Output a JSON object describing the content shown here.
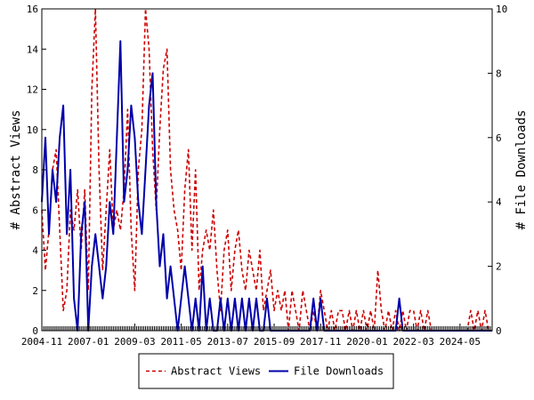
{
  "chart_data": {
    "type": "line",
    "title": "",
    "x_start": "2004-11",
    "x_end": "2025-11",
    "x_tick_labels": [
      "2004-11",
      "2007-01",
      "2009-03",
      "2011-05",
      "2013-07",
      "2015-09",
      "2017-11",
      "2020-01",
      "2022-03",
      "2024-05"
    ],
    "left_axis": {
      "label": "# Abstract Views",
      "min": 0,
      "max": 16,
      "ticks": [
        0,
        2,
        4,
        6,
        8,
        10,
        12,
        14,
        16
      ]
    },
    "right_axis": {
      "label": "# File Downloads",
      "min": 0,
      "max": 10,
      "ticks": [
        0,
        2,
        4,
        6,
        8,
        10
      ]
    },
    "grid": false,
    "legend": {
      "position": "bottom-center"
    },
    "series": [
      {
        "name": "Abstract Views",
        "axis": "left",
        "color": "#cc0000",
        "style": "dashed",
        "points": [
          [
            "2004-11",
            6
          ],
          [
            "2005-01",
            3
          ],
          [
            "2005-03",
            5
          ],
          [
            "2005-05",
            8
          ],
          [
            "2005-07",
            9
          ],
          [
            "2005-09",
            5
          ],
          [
            "2005-11",
            1
          ],
          [
            "2006-01",
            2
          ],
          [
            "2006-03",
            6
          ],
          [
            "2006-05",
            5
          ],
          [
            "2006-07",
            7
          ],
          [
            "2006-09",
            4
          ],
          [
            "2006-11",
            7
          ],
          [
            "2007-01",
            2
          ],
          [
            "2007-03",
            12
          ],
          [
            "2007-05",
            16
          ],
          [
            "2007-07",
            8
          ],
          [
            "2007-09",
            3
          ],
          [
            "2007-11",
            6
          ],
          [
            "2008-01",
            9
          ],
          [
            "2008-03",
            5
          ],
          [
            "2008-05",
            6
          ],
          [
            "2008-07",
            5
          ],
          [
            "2008-09",
            7
          ],
          [
            "2008-11",
            11
          ],
          [
            "2009-01",
            5
          ],
          [
            "2009-03",
            2
          ],
          [
            "2009-05",
            8
          ],
          [
            "2009-07",
            10
          ],
          [
            "2009-09",
            16
          ],
          [
            "2009-11",
            14
          ],
          [
            "2010-01",
            9
          ],
          [
            "2010-03",
            6
          ],
          [
            "2010-05",
            10
          ],
          [
            "2010-07",
            13
          ],
          [
            "2010-09",
            14
          ],
          [
            "2010-11",
            8
          ],
          [
            "2011-01",
            6
          ],
          [
            "2011-03",
            5
          ],
          [
            "2011-05",
            3
          ],
          [
            "2011-07",
            7
          ],
          [
            "2011-09",
            9
          ],
          [
            "2011-11",
            4
          ],
          [
            "2012-01",
            8
          ],
          [
            "2012-03",
            2
          ],
          [
            "2012-05",
            4
          ],
          [
            "2012-07",
            5
          ],
          [
            "2012-09",
            4
          ],
          [
            "2012-11",
            6
          ],
          [
            "2013-01",
            3
          ],
          [
            "2013-03",
            1
          ],
          [
            "2013-05",
            4
          ],
          [
            "2013-07",
            5
          ],
          [
            "2013-09",
            2
          ],
          [
            "2013-11",
            4
          ],
          [
            "2014-01",
            5
          ],
          [
            "2014-03",
            3
          ],
          [
            "2014-05",
            2
          ],
          [
            "2014-07",
            4
          ],
          [
            "2014-09",
            3
          ],
          [
            "2014-11",
            2
          ],
          [
            "2015-01",
            4
          ],
          [
            "2015-03",
            1
          ],
          [
            "2015-05",
            2
          ],
          [
            "2015-07",
            3
          ],
          [
            "2015-09",
            1
          ],
          [
            "2015-11",
            2
          ],
          [
            "2016-01",
            1
          ],
          [
            "2016-03",
            2
          ],
          [
            "2016-05",
            0
          ],
          [
            "2016-07",
            2
          ],
          [
            "2016-09",
            1
          ],
          [
            "2016-11",
            0
          ],
          [
            "2017-01",
            2
          ],
          [
            "2017-03",
            1
          ],
          [
            "2017-05",
            0
          ],
          [
            "2017-07",
            1
          ],
          [
            "2017-09",
            0
          ],
          [
            "2017-11",
            2
          ],
          [
            "2018-01",
            1
          ],
          [
            "2018-03",
            0
          ],
          [
            "2018-05",
            1
          ],
          [
            "2018-07",
            0
          ],
          [
            "2018-09",
            1
          ],
          [
            "2018-11",
            1
          ],
          [
            "2019-01",
            0
          ],
          [
            "2019-03",
            1
          ],
          [
            "2019-05",
            0
          ],
          [
            "2019-07",
            1
          ],
          [
            "2019-09",
            0
          ],
          [
            "2019-11",
            1
          ],
          [
            "2020-01",
            0
          ],
          [
            "2020-03",
            1
          ],
          [
            "2020-05",
            0
          ],
          [
            "2020-07",
            3
          ],
          [
            "2020-09",
            1
          ],
          [
            "2020-11",
            0
          ],
          [
            "2021-01",
            1
          ],
          [
            "2021-03",
            0
          ],
          [
            "2021-05",
            1
          ],
          [
            "2021-07",
            0
          ],
          [
            "2021-09",
            1
          ],
          [
            "2021-11",
            0
          ],
          [
            "2022-01",
            1
          ],
          [
            "2022-03",
            1
          ],
          [
            "2022-05",
            0
          ],
          [
            "2022-07",
            1
          ],
          [
            "2022-09",
            0
          ],
          [
            "2022-11",
            1
          ],
          [
            "2023-01",
            0
          ],
          [
            "2023-03",
            0
          ],
          [
            "2023-05",
            0
          ],
          [
            "2023-07",
            0
          ],
          [
            "2023-09",
            0
          ],
          [
            "2023-11",
            0
          ],
          [
            "2024-01",
            0
          ],
          [
            "2024-03",
            0
          ],
          [
            "2024-05",
            0
          ],
          [
            "2024-07",
            0
          ],
          [
            "2024-09",
            0
          ],
          [
            "2024-11",
            1
          ],
          [
            "2025-01",
            0
          ],
          [
            "2025-03",
            1
          ],
          [
            "2025-05",
            0
          ],
          [
            "2025-07",
            1
          ],
          [
            "2025-09",
            0
          ],
          [
            "2025-11",
            0
          ]
        ]
      },
      {
        "name": "File Downloads",
        "axis": "right",
        "color": "#0000aa",
        "style": "solid",
        "points": [
          [
            "2004-11",
            4
          ],
          [
            "2005-01",
            6
          ],
          [
            "2005-03",
            3
          ],
          [
            "2005-05",
            5
          ],
          [
            "2005-07",
            4
          ],
          [
            "2005-09",
            6
          ],
          [
            "2005-11",
            7
          ],
          [
            "2006-01",
            3
          ],
          [
            "2006-03",
            5
          ],
          [
            "2006-05",
            1
          ],
          [
            "2006-07",
            0
          ],
          [
            "2006-09",
            3
          ],
          [
            "2006-11",
            4
          ],
          [
            "2007-01",
            0
          ],
          [
            "2007-03",
            2
          ],
          [
            "2007-05",
            3
          ],
          [
            "2007-07",
            2
          ],
          [
            "2007-09",
            1
          ],
          [
            "2007-11",
            2
          ],
          [
            "2008-01",
            4
          ],
          [
            "2008-03",
            3
          ],
          [
            "2008-05",
            6
          ],
          [
            "2008-07",
            9
          ],
          [
            "2008-09",
            4
          ],
          [
            "2008-11",
            5
          ],
          [
            "2009-01",
            7
          ],
          [
            "2009-03",
            6
          ],
          [
            "2009-05",
            4
          ],
          [
            "2009-07",
            3
          ],
          [
            "2009-09",
            5
          ],
          [
            "2009-11",
            7
          ],
          [
            "2010-01",
            8
          ],
          [
            "2010-03",
            4
          ],
          [
            "2010-05",
            2
          ],
          [
            "2010-07",
            3
          ],
          [
            "2010-09",
            1
          ],
          [
            "2010-11",
            2
          ],
          [
            "2011-01",
            1
          ],
          [
            "2011-03",
            0
          ],
          [
            "2011-05",
            1
          ],
          [
            "2011-07",
            2
          ],
          [
            "2011-09",
            1
          ],
          [
            "2011-11",
            0
          ],
          [
            "2012-01",
            1
          ],
          [
            "2012-03",
            0
          ],
          [
            "2012-05",
            2
          ],
          [
            "2012-07",
            0
          ],
          [
            "2012-09",
            1
          ],
          [
            "2012-11",
            0
          ],
          [
            "2013-01",
            0
          ],
          [
            "2013-03",
            1
          ],
          [
            "2013-05",
            0
          ],
          [
            "2013-07",
            1
          ],
          [
            "2013-09",
            0
          ],
          [
            "2013-11",
            1
          ],
          [
            "2014-01",
            0
          ],
          [
            "2014-03",
            1
          ],
          [
            "2014-05",
            0
          ],
          [
            "2014-07",
            1
          ],
          [
            "2014-09",
            0
          ],
          [
            "2014-11",
            1
          ],
          [
            "2015-01",
            0
          ],
          [
            "2015-03",
            0
          ],
          [
            "2015-05",
            1
          ],
          [
            "2015-07",
            0
          ],
          [
            "2015-09",
            0
          ],
          [
            "2015-11",
            0
          ],
          [
            "2016-01",
            0
          ],
          [
            "2016-03",
            0
          ],
          [
            "2016-05",
            0
          ],
          [
            "2016-07",
            0
          ],
          [
            "2016-09",
            0
          ],
          [
            "2016-11",
            0
          ],
          [
            "2017-01",
            0
          ],
          [
            "2017-03",
            0
          ],
          [
            "2017-05",
            0
          ],
          [
            "2017-07",
            1
          ],
          [
            "2017-09",
            0
          ],
          [
            "2017-11",
            1
          ],
          [
            "2018-01",
            0
          ],
          [
            "2018-03",
            0
          ],
          [
            "2018-05",
            0
          ],
          [
            "2018-07",
            0
          ],
          [
            "2018-09",
            0
          ],
          [
            "2018-11",
            0
          ],
          [
            "2019-01",
            0
          ],
          [
            "2019-03",
            0
          ],
          [
            "2019-05",
            0
          ],
          [
            "2019-07",
            0
          ],
          [
            "2019-09",
            0
          ],
          [
            "2019-11",
            0
          ],
          [
            "2020-01",
            0
          ],
          [
            "2020-03",
            0
          ],
          [
            "2020-05",
            0
          ],
          [
            "2020-07",
            0
          ],
          [
            "2020-09",
            0
          ],
          [
            "2020-11",
            0
          ],
          [
            "2021-01",
            0
          ],
          [
            "2021-03",
            0
          ],
          [
            "2021-05",
            0
          ],
          [
            "2021-07",
            1
          ],
          [
            "2021-09",
            0
          ],
          [
            "2021-11",
            0
          ],
          [
            "2022-01",
            0
          ],
          [
            "2022-03",
            0
          ],
          [
            "2022-05",
            0
          ],
          [
            "2022-07",
            0
          ],
          [
            "2022-09",
            0
          ],
          [
            "2022-11",
            0
          ],
          [
            "2023-01",
            0
          ],
          [
            "2023-03",
            0
          ],
          [
            "2023-05",
            0
          ],
          [
            "2023-07",
            0
          ],
          [
            "2023-09",
            0
          ],
          [
            "2023-11",
            0
          ],
          [
            "2024-01",
            0
          ],
          [
            "2024-03",
            0
          ],
          [
            "2024-05",
            0
          ],
          [
            "2024-07",
            0
          ],
          [
            "2024-09",
            0
          ],
          [
            "2024-11",
            0
          ],
          [
            "2025-01",
            0
          ],
          [
            "2025-03",
            0
          ],
          [
            "2025-05",
            0
          ],
          [
            "2025-07",
            0
          ],
          [
            "2025-09",
            0
          ],
          [
            "2025-11",
            0
          ]
        ]
      }
    ]
  }
}
